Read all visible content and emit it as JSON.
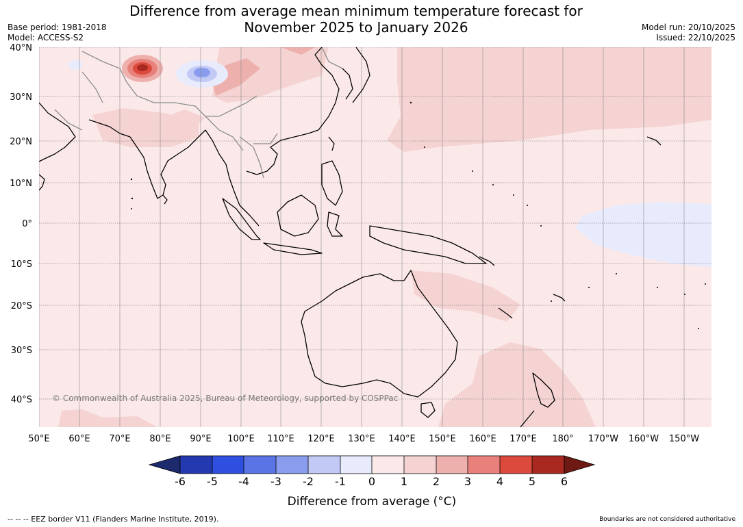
{
  "title_line1": "Difference from average mean minimum temperature forecast for",
  "title_line2": "November 2025 to January 2026",
  "base_period": "Base period: 1981-2018",
  "model": "Model: ACCESS-S2",
  "model_run": "Model run: 20/10/2025",
  "issued": "Issued: 22/10/2025",
  "lat_labels": [
    "40°N",
    "30°N",
    "20°N",
    "10°N",
    "0°",
    "10°S",
    "20°S",
    "30°S",
    "40°S"
  ],
  "lon_labels": [
    "50°E",
    "60°E",
    "70°E",
    "80°E",
    "90°E",
    "100°E",
    "110°E",
    "120°E",
    "130°E",
    "140°E",
    "150°E",
    "160°E",
    "170°E",
    "180°",
    "170°W",
    "160°W",
    "150°W"
  ],
  "copyright": "© Commonwealth of Australia 2025, Bureau of Meteorology, supported by COSPPac",
  "colorbar": {
    "ticks": [
      "-6",
      "-5",
      "-4",
      "-3",
      "-2",
      "-1",
      "0",
      "1",
      "2",
      "3",
      "4",
      "5",
      "6"
    ],
    "colors": [
      "#1d2b6e",
      "#2438b0",
      "#2f4fe0",
      "#5a74e6",
      "#8a9ced",
      "#c2c9f5",
      "#e8ebfc",
      "#fbe9e9",
      "#f5d3d3",
      "#eeb0ad",
      "#e8817b",
      "#db4a3c",
      "#a9281f",
      "#6e1a14"
    ],
    "title": "Difference from average (°C)"
  },
  "footer_left": "--  --  -- EEZ border V11 (Flanders Marine Institute, 2019).",
  "footer_right": "Boundaries are not considered authoritative",
  "colors": {
    "base_anomaly": "#fbe9e9",
    "band_1_2": "#f5d3d3",
    "band_2_3": "#eeb0ad",
    "band_3_4": "#e8817b",
    "band_neg": "#e8ebfc"
  }
}
